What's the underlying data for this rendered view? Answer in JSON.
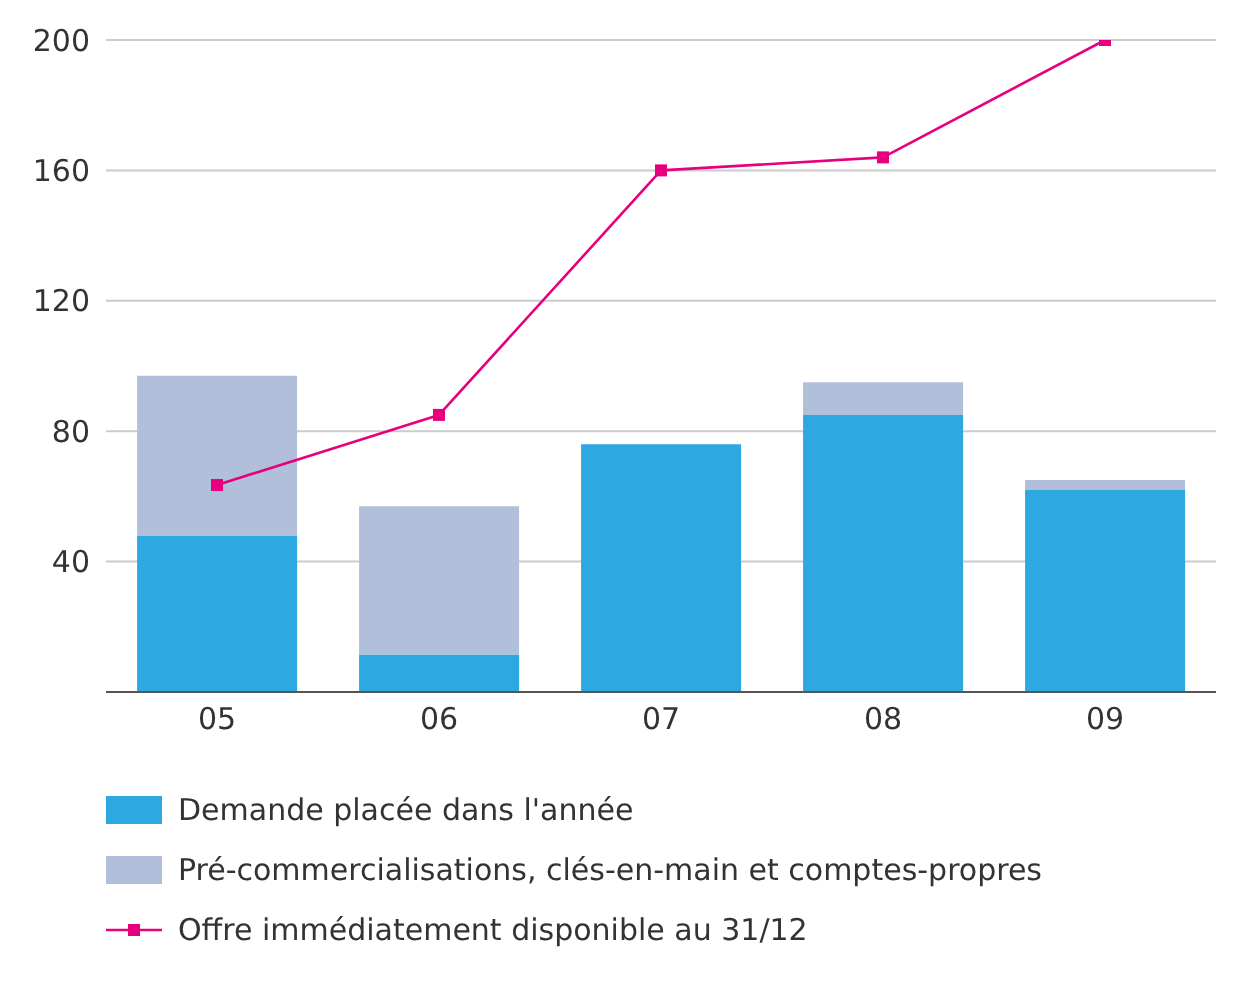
{
  "chart_data": {
    "type": "bar",
    "categories": [
      "05",
      "06",
      "07",
      "08",
      "09"
    ],
    "stacked": true,
    "series": [
      {
        "name": "Demande placée dans l'année",
        "color": "#2ea8e0",
        "values": [
          48,
          11.5,
          76,
          85,
          62
        ]
      },
      {
        "name": "Pré-commercialisations, clés-en-main et comptes-propres",
        "color": "#b2bfdb",
        "values": [
          49,
          45.5,
          0,
          10,
          3
        ]
      },
      {
        "name": "Offre immédiatement disponible au 31/12",
        "type": "line",
        "color": "#e6007e",
        "marker": "square",
        "values": [
          63.5,
          85,
          160,
          164,
          200
        ]
      }
    ],
    "ylim": [
      0,
      200
    ],
    "yticks": [
      40,
      80,
      120,
      160,
      200
    ],
    "grid": "y",
    "legend": "bottom"
  }
}
